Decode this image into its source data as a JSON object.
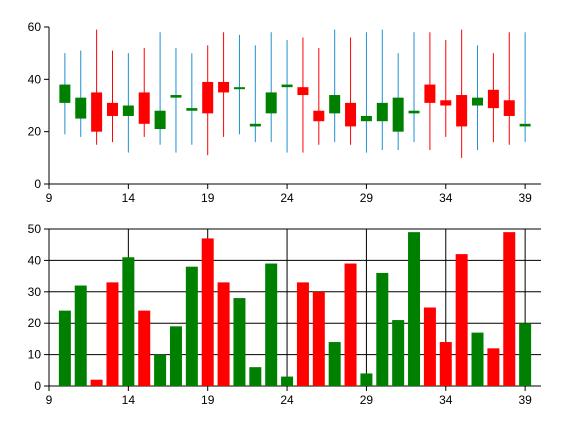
{
  "chart_data": [
    {
      "type": "candlestick",
      "title": "",
      "xlabel": "",
      "ylabel": "",
      "xlim": [
        9,
        40
      ],
      "ylim": [
        0,
        60
      ],
      "x_ticks": [
        "9",
        "14",
        "19",
        "24",
        "29",
        "34",
        "39"
      ],
      "y_ticks": [
        "0",
        "20",
        "40",
        "60"
      ],
      "grid": false,
      "colors": {
        "up": "#008000",
        "down": "#ff0000",
        "wick_up": "#1e90d0",
        "wick_down": "#ff0000"
      },
      "candles": [
        {
          "x": 10,
          "open": 31,
          "close": 38,
          "high": 50,
          "low": 19
        },
        {
          "x": 11,
          "open": 25,
          "close": 33,
          "high": 51,
          "low": 18
        },
        {
          "x": 12,
          "open": 35,
          "close": 20,
          "high": 59,
          "low": 15
        },
        {
          "x": 13,
          "open": 31,
          "close": 26,
          "high": 51,
          "low": 16
        },
        {
          "x": 14,
          "open": 26,
          "close": 30,
          "high": 50,
          "low": 12
        },
        {
          "x": 15,
          "open": 35,
          "close": 23,
          "high": 52,
          "low": 18
        },
        {
          "x": 16,
          "open": 21,
          "close": 28,
          "high": 58,
          "low": 15
        },
        {
          "x": 17,
          "open": 33,
          "close": 34,
          "high": 52,
          "low": 12
        },
        {
          "x": 18,
          "open": 28,
          "close": 29,
          "high": 50,
          "low": 15
        },
        {
          "x": 19,
          "open": 39,
          "close": 27,
          "high": 53,
          "low": 11
        },
        {
          "x": 20,
          "open": 39,
          "close": 35,
          "high": 58,
          "low": 18
        },
        {
          "x": 21,
          "open": 37,
          "close": 37,
          "high": 57,
          "low": 19
        },
        {
          "x": 22,
          "open": 22,
          "close": 23,
          "high": 53,
          "low": 16
        },
        {
          "x": 23,
          "open": 27,
          "close": 35,
          "high": 58,
          "low": 16
        },
        {
          "x": 24,
          "open": 37,
          "close": 38,
          "high": 55,
          "low": 12
        },
        {
          "x": 25,
          "open": 37,
          "close": 34,
          "high": 56,
          "low": 12
        },
        {
          "x": 26,
          "open": 28,
          "close": 24,
          "high": 52,
          "low": 15
        },
        {
          "x": 27,
          "open": 27,
          "close": 34,
          "high": 59,
          "low": 16
        },
        {
          "x": 28,
          "open": 31,
          "close": 22,
          "high": 56,
          "low": 15
        },
        {
          "x": 29,
          "open": 24,
          "close": 26,
          "high": 58,
          "low": 12
        },
        {
          "x": 30,
          "open": 24,
          "close": 31,
          "high": 59,
          "low": 13
        },
        {
          "x": 31,
          "open": 20,
          "close": 33,
          "high": 50,
          "low": 13
        },
        {
          "x": 32,
          "open": 27,
          "close": 28,
          "high": 58,
          "low": 16
        },
        {
          "x": 33,
          "open": 38,
          "close": 31,
          "high": 58,
          "low": 13
        },
        {
          "x": 34,
          "open": 32,
          "close": 30,
          "high": 55,
          "low": 18
        },
        {
          "x": 35,
          "open": 34,
          "close": 22,
          "high": 59,
          "low": 10
        },
        {
          "x": 36,
          "open": 30,
          "close": 33,
          "high": 53,
          "low": 13
        },
        {
          "x": 37,
          "open": 36,
          "close": 29,
          "high": 50,
          "low": 16
        },
        {
          "x": 38,
          "open": 32,
          "close": 26,
          "high": 58,
          "low": 15
        },
        {
          "x": 39,
          "open": 22,
          "close": 23,
          "high": 58,
          "low": 16
        }
      ]
    },
    {
      "type": "bar",
      "title": "",
      "xlabel": "",
      "ylabel": "",
      "xlim": [
        9,
        40
      ],
      "ylim": [
        0,
        50
      ],
      "x_ticks": [
        "9",
        "14",
        "19",
        "24",
        "29",
        "34",
        "39"
      ],
      "y_ticks": [
        "0",
        "10",
        "20",
        "30",
        "40",
        "50"
      ],
      "grid": true,
      "colors": {
        "green": "#008000",
        "red": "#ff0000",
        "grid": "#000000"
      },
      "x": [
        10,
        11,
        12,
        13,
        14,
        15,
        16,
        17,
        18,
        19,
        20,
        21,
        22,
        23,
        24,
        25,
        26,
        27,
        28,
        29,
        30,
        31,
        32,
        33,
        34,
        35,
        36,
        37,
        38,
        39
      ],
      "values": [
        24,
        32,
        2,
        33,
        41,
        24,
        10,
        19,
        38,
        47,
        33,
        28,
        6,
        39,
        3,
        33,
        30,
        14,
        39,
        4,
        36,
        21,
        49,
        25,
        14,
        42,
        17,
        12,
        49,
        20
      ],
      "bar_colors": [
        "green",
        "green",
        "red",
        "red",
        "green",
        "red",
        "green",
        "green",
        "green",
        "red",
        "red",
        "green",
        "green",
        "green",
        "green",
        "red",
        "red",
        "green",
        "red",
        "green",
        "green",
        "green",
        "green",
        "red",
        "red",
        "red",
        "green",
        "red",
        "red",
        "green"
      ]
    }
  ]
}
